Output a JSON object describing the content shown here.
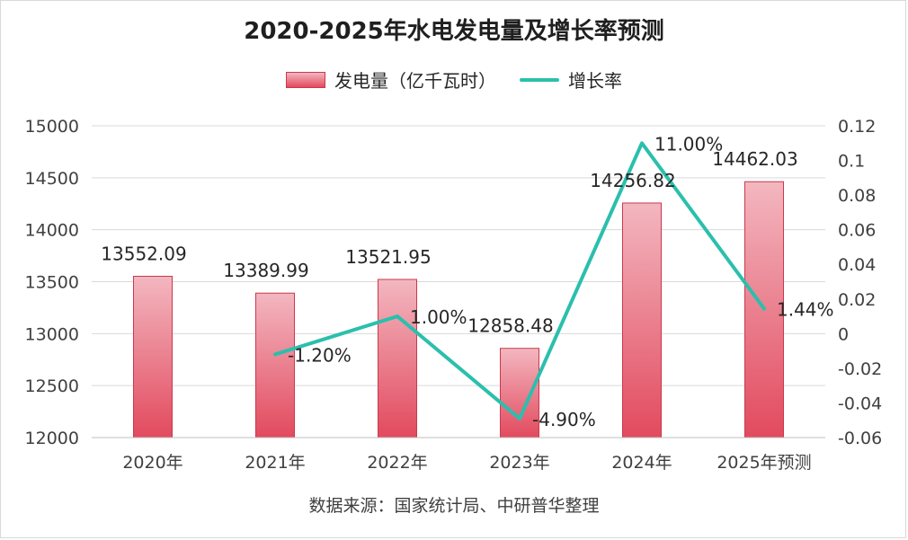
{
  "title": "2020-2025年水电发电量及增长率预测",
  "legend": {
    "bar_label": "发电量（亿千瓦时）",
    "line_label": "增长率"
  },
  "source": "数据来源：国家统计局、中研普华整理",
  "colors": {
    "bar_top": "#f3b7c0",
    "bar_bottom": "#e24a5e",
    "bar_border": "#c9394d",
    "line": "#2bbfad",
    "gridline": "#d9d9d9"
  },
  "chart_data": {
    "type": "bar",
    "title": "2020-2025年水电发电量及增长率预测",
    "categories": [
      "2020年",
      "2021年",
      "2022年",
      "2023年",
      "2024年",
      "2025年预测"
    ],
    "series": [
      {
        "name": "发电量（亿千瓦时）",
        "type": "bar",
        "axis": "left",
        "values": [
          13552.09,
          13389.99,
          13521.95,
          12858.48,
          14256.82,
          14462.03
        ],
        "labels": [
          "13552.09",
          "13389.99",
          "13521.95",
          "12858.48",
          "14256.82",
          "14462.03"
        ]
      },
      {
        "name": "增长率",
        "type": "line",
        "axis": "right",
        "values": [
          null,
          -0.012,
          0.01,
          -0.049,
          0.11,
          0.0144
        ],
        "labels": [
          "",
          "-1.20%",
          "1.00%",
          "-4.90%",
          "11.00%",
          "1.44%"
        ]
      }
    ],
    "y_left": {
      "ylim": [
        12000,
        15000
      ],
      "ticks": [
        "12000",
        "12500",
        "13000",
        "13500",
        "14000",
        "14500",
        "15000"
      ]
    },
    "y_right": {
      "ylim": [
        -0.06,
        0.12
      ],
      "ticks": [
        "-0.06",
        "-0.04",
        "-0.02",
        "0",
        "0.02",
        "0.04",
        "0.06",
        "0.08",
        "0.1",
        "0.12"
      ]
    },
    "grid": true,
    "legend_position": "top"
  }
}
